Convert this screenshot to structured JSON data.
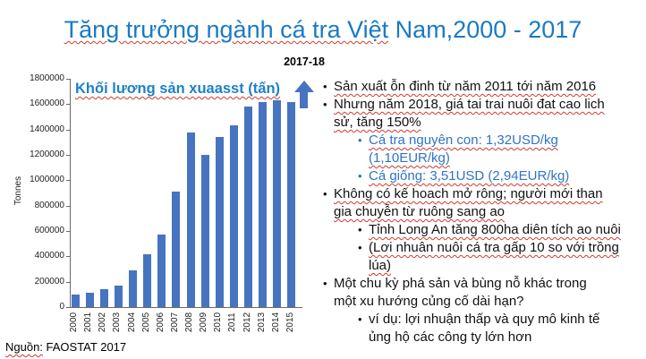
{
  "slide": {
    "title": {
      "part_misspelled": "Tăng trưởng ngành cá tra Việt",
      "part_plain": " Nam,2000 - 2017"
    },
    "source": {
      "label": "Nguồn:",
      "value": " FAOSTAT 2017"
    }
  },
  "chart_data": {
    "type": "bar",
    "title": "Khối lương sản xuaasst (tấn)",
    "ylabel": "Tonnes",
    "xlabel": "",
    "annotation": "2017-18",
    "categories": [
      "2000",
      "2001",
      "2002",
      "2003",
      "2004",
      "2005",
      "2006",
      "2007",
      "2008",
      "2009",
      "2010",
      "2011",
      "2012",
      "2013",
      "2014",
      "2015"
    ],
    "values": [
      100000,
      110000,
      140000,
      170000,
      290000,
      420000,
      570000,
      910000,
      1380000,
      1200000,
      1340000,
      1430000,
      1580000,
      1620000,
      1630000,
      1620000
    ],
    "ylim": [
      0,
      1800000
    ],
    "ytick_step": 200000,
    "grid": false,
    "legend": false,
    "bar_color": "#4674c1"
  },
  "bullets": [
    {
      "level": 1,
      "blue": false,
      "squiggle": true,
      "lines": [
        "Sản xuất ỗn đinh từ năm 2011 tới năm 2016"
      ]
    },
    {
      "level": 1,
      "blue": false,
      "squiggle": true,
      "lines": [
        "Nhưng năm 2018, giá tai trai nuôi đat cao lich",
        "sử, tăng 150%"
      ]
    },
    {
      "level": 2,
      "blue": true,
      "squiggle": true,
      "lines": [
        "Cá tra nguyên con: 1,32USD/kg",
        "(1,10EUR/kg)"
      ]
    },
    {
      "level": 2,
      "blue": true,
      "squiggle": true,
      "lines": [
        "Cá giống: 3,51USD (2,94EUR/kg)"
      ]
    },
    {
      "level": 1,
      "blue": false,
      "squiggle": true,
      "lines": [
        "Không có kế hoach mở rông; người mới than",
        "gia chuyễn từ ruông sang ao"
      ]
    },
    {
      "level": 2,
      "blue": false,
      "squiggle": true,
      "lines": [
        "Tỉnh Long An tăng 800ha diên tích ao nuôi"
      ]
    },
    {
      "level": 2,
      "blue": false,
      "squiggle": true,
      "lines": [
        "(Lơi nhuân nuôi cá tra gấp 10 so với trồng",
        "lúa)"
      ]
    },
    {
      "level": 1,
      "blue": false,
      "squiggle": false,
      "lines": [
        "Một chu kỳ phá sản và bùng nỗ khác trong",
        "một xu hướng củng cố dài hạn?"
      ]
    },
    {
      "level": 2,
      "blue": false,
      "squiggle": false,
      "lines": [
        "ví dụ: lợi nhuận thấp và quy mô kinh tế",
        "ủng hộ các công ty lớn hơn"
      ]
    }
  ],
  "colors": {
    "title_blue": "#1b7ac4",
    "chart_title_blue": "#1e80ca",
    "accent_text_blue": "#2e74c8",
    "bar_blue": "#4674c1",
    "squiggle_red": "#d03b2f",
    "axis_gray": "#6a6a6a"
  }
}
